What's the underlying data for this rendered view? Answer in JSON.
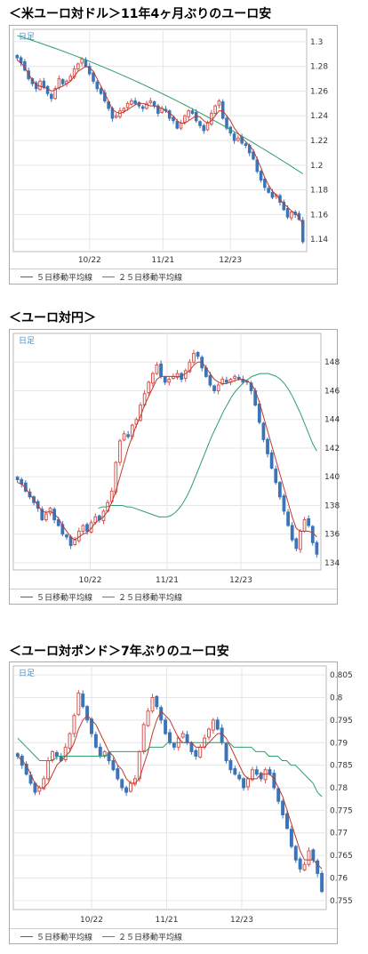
{
  "sections": [
    {
      "title": "＜米ユーロ対ドル＞11年4ヶ月ぶりのユーロ安"
    },
    {
      "title": "＜ユーロ対円＞"
    },
    {
      "title": "＜ユーロ対ポンド＞7年ぶりのユーロ安"
    }
  ],
  "legend": {
    "ma5": "５日移動平均線",
    "ma25": "２５日移動平均線"
  },
  "colors": {
    "up": "#d9534f",
    "down": "#3b74b8",
    "ma5": "#c0392b",
    "ma25": "#2e9e6a",
    "ashi_label": "#4a90c8"
  },
  "chart_data": [
    {
      "type": "candlestick",
      "title": "＜米ユーロ対ドル＞11年4ヶ月ぶりのユーロ安",
      "timeframe_label": "日足",
      "x_tick_labels": [
        "10/22",
        "11/21",
        "12/23"
      ],
      "y_ticks": [
        1.14,
        1.16,
        1.18,
        1.2,
        1.22,
        1.24,
        1.26,
        1.28,
        1.3
      ],
      "ylim": [
        1.13,
        1.31
      ],
      "legend": [
        "５日移動平均線",
        "２５日移動平均線"
      ],
      "approx_path": {
        "closes": [
          1.287,
          1.283,
          1.277,
          1.27,
          1.266,
          1.262,
          1.268,
          1.263,
          1.258,
          1.254,
          1.262,
          1.27,
          1.266,
          1.268,
          1.272,
          1.278,
          1.282,
          1.286,
          1.28,
          1.274,
          1.268,
          1.262,
          1.258,
          1.252,
          1.246,
          1.238,
          1.24,
          1.244,
          1.246,
          1.25,
          1.252,
          1.25,
          1.248,
          1.246,
          1.25,
          1.252,
          1.248,
          1.242,
          1.246,
          1.244,
          1.238,
          1.236,
          1.23,
          1.234,
          1.24,
          1.244,
          1.242,
          1.236,
          1.232,
          1.228,
          1.234,
          1.242,
          1.248,
          1.252,
          1.238,
          1.23,
          1.226,
          1.22,
          1.222,
          1.218,
          1.216,
          1.21,
          1.205,
          1.195,
          1.188,
          1.182,
          1.178,
          1.174,
          1.176,
          1.17,
          1.164,
          1.158,
          1.162,
          1.16,
          1.156,
          1.138
        ],
        "ma5": [
          1.285,
          1.283,
          1.279,
          1.274,
          1.269,
          1.265,
          1.264,
          1.263,
          1.262,
          1.26,
          1.261,
          1.263,
          1.264,
          1.266,
          1.268,
          1.272,
          1.276,
          1.278,
          1.28,
          1.279,
          1.276,
          1.27,
          1.264,
          1.258,
          1.252,
          1.245,
          1.243,
          1.242,
          1.243,
          1.245,
          1.247,
          1.249,
          1.25,
          1.25,
          1.249,
          1.248,
          1.248,
          1.247,
          1.246,
          1.244,
          1.242,
          1.24,
          1.236,
          1.234,
          1.234,
          1.236,
          1.238,
          1.24,
          1.239,
          1.236,
          1.234,
          1.236,
          1.24,
          1.244,
          1.244,
          1.24,
          1.236,
          1.23,
          1.226,
          1.222,
          1.219,
          1.216,
          1.212,
          1.205,
          1.198,
          1.19,
          1.184,
          1.179,
          1.176,
          1.172,
          1.169,
          1.166,
          1.163,
          1.161,
          1.158,
          1.152
        ],
        "ma25_start": 1.305,
        "ma25_end": 1.193
      }
    },
    {
      "type": "candlestick",
      "title": "＜ユーロ対円＞",
      "timeframe_label": "日足",
      "x_tick_labels": [
        "10/22",
        "11/21",
        "12/23"
      ],
      "y_ticks": [
        134,
        136,
        138,
        140,
        142,
        144,
        146,
        148
      ],
      "ylim": [
        133.5,
        150
      ],
      "legend": [
        "５日移動平均線",
        "２５日移動平均線"
      ],
      "approx_path": {
        "closes": [
          139.8,
          139.5,
          139.0,
          138.6,
          138.2,
          137.8,
          137.0,
          137.4,
          137.8,
          137.0,
          136.6,
          136.0,
          135.8,
          135.2,
          135.6,
          136.2,
          136.6,
          136.2,
          136.8,
          137.2,
          137.0,
          137.6,
          138.2,
          139.0,
          141.0,
          142.5,
          143.0,
          142.8,
          143.6,
          144.0,
          145.0,
          145.8,
          146.6,
          147.2,
          147.8,
          147.0,
          146.6,
          146.8,
          147.0,
          147.2,
          146.8,
          147.4,
          148.0,
          148.6,
          148.4,
          147.6,
          147.0,
          146.4,
          146.0,
          146.4,
          146.8,
          146.6,
          146.8,
          147.0,
          146.8,
          146.6,
          146.6,
          146.0,
          145.0,
          143.8,
          142.6,
          141.6,
          140.6,
          139.6,
          138.6,
          137.6,
          136.6,
          135.6,
          135.0,
          136.2,
          137.0,
          136.6,
          135.4,
          134.6
        ],
        "ma5": [
          139.6,
          139.5,
          139.2,
          138.8,
          138.4,
          138.0,
          137.6,
          137.5,
          137.6,
          137.4,
          137.1,
          136.6,
          136.2,
          135.8,
          135.6,
          135.8,
          136.0,
          136.1,
          136.4,
          136.8,
          137.0,
          137.2,
          137.6,
          138.2,
          139.0,
          140.0,
          141.0,
          142.0,
          142.8,
          143.6,
          144.2,
          145.0,
          145.6,
          146.2,
          146.8,
          147.0,
          147.0,
          147.0,
          147.0,
          147.0,
          147.0,
          147.2,
          147.4,
          147.8,
          148.0,
          148.0,
          147.6,
          147.2,
          146.8,
          146.6,
          146.5,
          146.5,
          146.6,
          146.7,
          146.8,
          146.8,
          146.7,
          146.5,
          146.0,
          145.2,
          144.2,
          143.2,
          142.2,
          141.2,
          140.2,
          139.2,
          138.2,
          137.2,
          136.4,
          136.2,
          136.2,
          136.2,
          136.1,
          135.8
        ],
        "ma25": [
          137.8,
          137.9,
          137.9,
          138.0,
          138.0,
          138.0,
          138.0,
          137.9,
          137.9,
          137.8,
          137.7,
          137.6,
          137.5,
          137.4,
          137.3,
          137.2,
          137.2,
          137.2,
          137.3,
          137.5,
          137.8,
          138.2,
          138.7,
          139.3,
          140.0,
          140.7,
          141.4,
          142.1,
          142.8,
          143.4,
          144.0,
          144.6,
          145.1,
          145.6,
          146.0,
          146.3,
          146.6,
          146.8,
          147.0,
          147.1,
          147.2,
          147.2,
          147.2,
          147.1,
          147.0,
          146.8,
          146.5,
          146.1,
          145.6,
          145.0,
          144.4,
          143.7,
          143.0,
          142.3,
          141.8
        ],
        "ma25_offset": 20
      }
    },
    {
      "type": "candlestick",
      "title": "＜ユーロ対ポンド＞7年ぶりのユーロ安",
      "timeframe_label": "日足",
      "x_tick_labels": [
        "10/22",
        "11/21",
        "12/23"
      ],
      "y_ticks": [
        0.755,
        0.76,
        0.765,
        0.77,
        0.775,
        0.78,
        0.785,
        0.79,
        0.795,
        0.8,
        0.805
      ],
      "ylim": [
        0.753,
        0.807
      ],
      "legend": [
        "５日移動平均線",
        "２５日移動平均線"
      ],
      "approx_path": {
        "closes": [
          0.787,
          0.785,
          0.783,
          0.781,
          0.779,
          0.78,
          0.782,
          0.786,
          0.788,
          0.787,
          0.786,
          0.789,
          0.792,
          0.796,
          0.801,
          0.798,
          0.795,
          0.792,
          0.789,
          0.787,
          0.788,
          0.786,
          0.784,
          0.782,
          0.78,
          0.779,
          0.781,
          0.782,
          0.788,
          0.794,
          0.797,
          0.8,
          0.798,
          0.795,
          0.792,
          0.79,
          0.789,
          0.791,
          0.792,
          0.79,
          0.788,
          0.787,
          0.789,
          0.791,
          0.793,
          0.795,
          0.793,
          0.79,
          0.786,
          0.784,
          0.783,
          0.782,
          0.78,
          0.782,
          0.784,
          0.783,
          0.782,
          0.784,
          0.783,
          0.78,
          0.777,
          0.774,
          0.771,
          0.767,
          0.764,
          0.762,
          0.763,
          0.766,
          0.764,
          0.761,
          0.757
        ],
        "ma5": [
          0.787,
          0.786,
          0.785,
          0.783,
          0.781,
          0.78,
          0.78,
          0.781,
          0.783,
          0.785,
          0.786,
          0.787,
          0.788,
          0.79,
          0.793,
          0.795,
          0.796,
          0.795,
          0.794,
          0.792,
          0.79,
          0.788,
          0.787,
          0.785,
          0.784,
          0.782,
          0.781,
          0.781,
          0.782,
          0.785,
          0.788,
          0.792,
          0.795,
          0.797,
          0.796,
          0.795,
          0.793,
          0.791,
          0.79,
          0.79,
          0.79,
          0.789,
          0.789,
          0.789,
          0.79,
          0.791,
          0.792,
          0.792,
          0.791,
          0.789,
          0.787,
          0.785,
          0.783,
          0.782,
          0.782,
          0.782,
          0.783,
          0.783,
          0.783,
          0.782,
          0.78,
          0.778,
          0.775,
          0.772,
          0.769,
          0.766,
          0.764,
          0.764,
          0.764,
          0.763,
          0.762
        ],
        "ma25": [
          0.791,
          0.79,
          0.789,
          0.788,
          0.787,
          0.786,
          0.786,
          0.786,
          0.786,
          0.787,
          0.787,
          0.787,
          0.787,
          0.787,
          0.787,
          0.787,
          0.787,
          0.787,
          0.787,
          0.787,
          0.787,
          0.788,
          0.788,
          0.788,
          0.788,
          0.788,
          0.788,
          0.788,
          0.788,
          0.788,
          0.789,
          0.789,
          0.789,
          0.789,
          0.79,
          0.79,
          0.79,
          0.79,
          0.79,
          0.79,
          0.79,
          0.79,
          0.79,
          0.79,
          0.79,
          0.79,
          0.79,
          0.79,
          0.79,
          0.789,
          0.789,
          0.789,
          0.789,
          0.789,
          0.788,
          0.788,
          0.788,
          0.787,
          0.787,
          0.787,
          0.786,
          0.786,
          0.785,
          0.785,
          0.784,
          0.783,
          0.782,
          0.781,
          0.779,
          0.778
        ]
      }
    }
  ]
}
